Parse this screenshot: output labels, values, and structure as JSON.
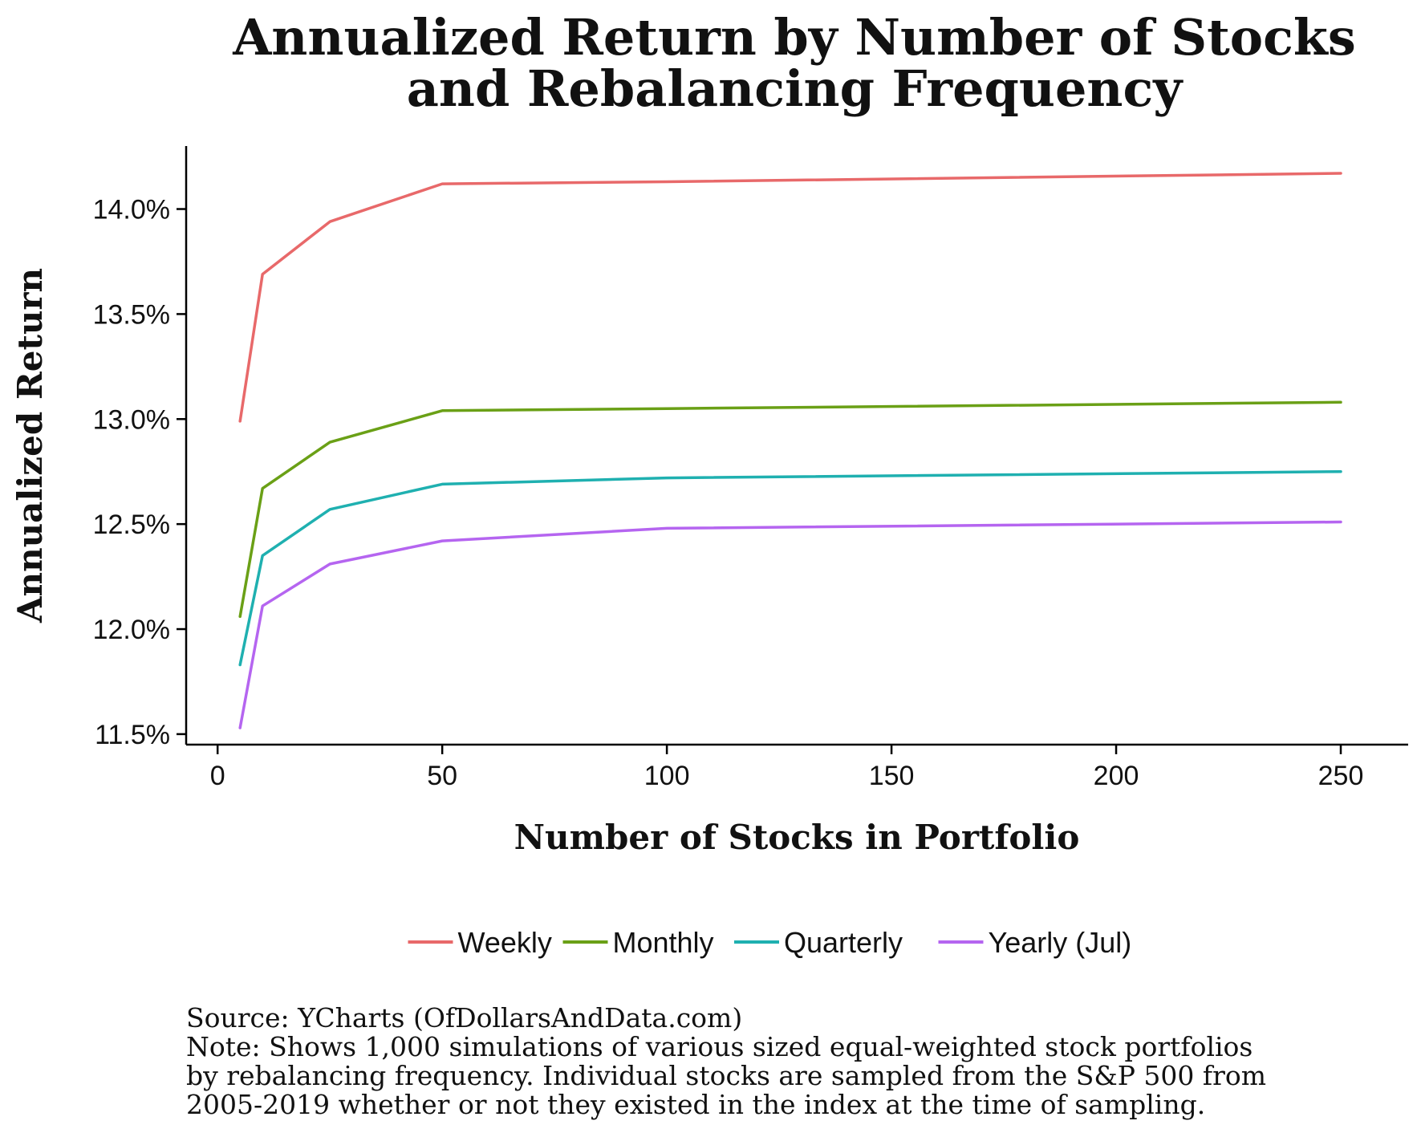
{
  "chart_data": {
    "type": "line",
    "title_lines": [
      "Annualized Return by Number of Stocks",
      "and Rebalancing Frequency"
    ],
    "xlabel": "Number of Stocks in Portfolio",
    "ylabel": "Annualized Return",
    "x_ticks": [
      "0",
      "50",
      "100",
      "150",
      "200",
      "250"
    ],
    "y_ticks": [
      "11.5%",
      "12.0%",
      "12.5%",
      "13.0%",
      "13.5%",
      "14.0%"
    ],
    "xlim": [
      -7,
      265
    ],
    "ylim": [
      11.45,
      14.3
    ],
    "x": [
      5,
      10,
      25,
      50,
      100,
      250
    ],
    "series": [
      {
        "name": "Weekly",
        "color": "#e8696a",
        "values": [
          12.99,
          13.69,
          13.94,
          14.12,
          14.13,
          14.17
        ]
      },
      {
        "name": "Monthly",
        "color": "#6aa016",
        "values": [
          12.06,
          12.67,
          12.89,
          13.04,
          13.05,
          13.08
        ]
      },
      {
        "name": "Quarterly",
        "color": "#1fb0b0",
        "values": [
          11.83,
          12.35,
          12.57,
          12.69,
          12.72,
          12.75
        ]
      },
      {
        "name": "Yearly (Jul)",
        "color": "#b565f0",
        "values": [
          11.53,
          12.11,
          12.31,
          12.42,
          12.48,
          12.51
        ]
      }
    ],
    "grid": false,
    "legend_position": "bottom"
  },
  "footer": {
    "lines": [
      "Source: YCharts (OfDollarsAndData.com)",
      "Note: Shows 1,000 simulations of various sized equal-weighted stock portfolios",
      "by rebalancing frequency. Individual stocks are sampled from the S&P 500 from",
      "2005-2019 whether or not they existed in the index at the time of sampling."
    ]
  }
}
